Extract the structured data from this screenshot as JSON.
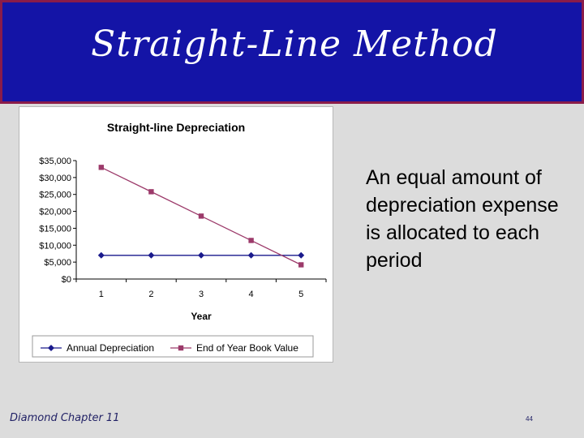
{
  "slide": {
    "title": "Straight-Line Method",
    "body_text": "An equal amount of depreciation expense is allocated to each period",
    "footer_left": "Diamond Chapter 11",
    "page_number": "44"
  },
  "colors": {
    "title_bg": "#1414a6",
    "title_border": "#8a1c4a",
    "series_annual": "#1a1a8c",
    "series_book": "#9c3a6a"
  },
  "chart_data": {
    "type": "line",
    "title": "Straight-line Depreciation",
    "xlabel": "Year",
    "ylabel": "",
    "x": [
      1,
      2,
      3,
      4,
      5
    ],
    "ylim": [
      0,
      35000
    ],
    "yticks": [
      0,
      5000,
      10000,
      15000,
      20000,
      25000,
      30000,
      35000
    ],
    "ytick_labels": [
      "$0",
      "$5,000",
      "$10,000",
      "$15,000",
      "$20,000",
      "$25,000",
      "$30,000",
      "$35,000"
    ],
    "xtick_labels": [
      "1",
      "2",
      "3",
      "4",
      "5"
    ],
    "grid": false,
    "legend_position": "bottom",
    "series": [
      {
        "name": "Annual Depreciation",
        "values": [
          7000,
          7000,
          7000,
          7000,
          7000
        ],
        "marker": "diamond"
      },
      {
        "name": "End of Year Book Value",
        "values": [
          33000,
          25800,
          18600,
          11400,
          4200
        ],
        "marker": "square"
      }
    ]
  }
}
